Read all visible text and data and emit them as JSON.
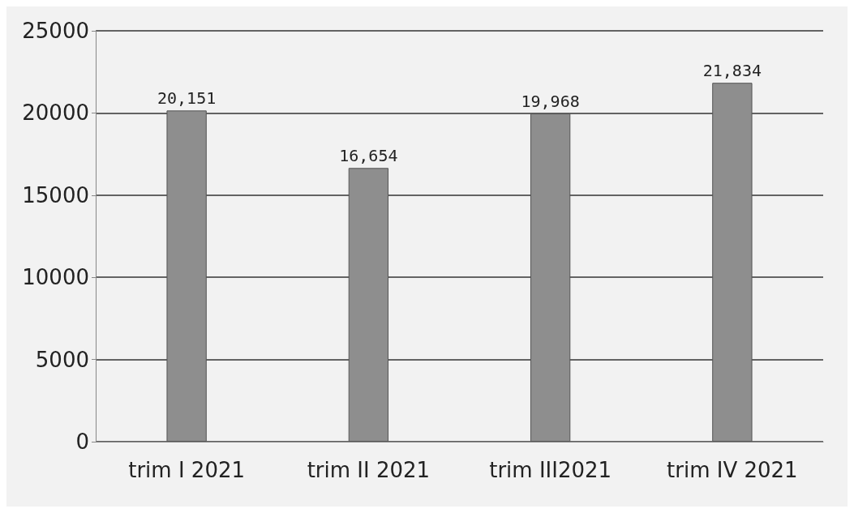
{
  "chart_data": {
    "type": "bar",
    "categories": [
      "trim I 2021",
      "trim II 2021",
      "trim III2021",
      "trim IV 2021"
    ],
    "values": [
      20151,
      16654,
      19968,
      21834
    ],
    "value_labels": [
      "20,151",
      "16,654",
      "19,968",
      "21,834"
    ],
    "color": "#8e8e8e",
    "ylim": [
      0,
      25000
    ],
    "yticks": [
      0,
      5000,
      10000,
      15000,
      20000,
      25000
    ],
    "grid": "y"
  }
}
